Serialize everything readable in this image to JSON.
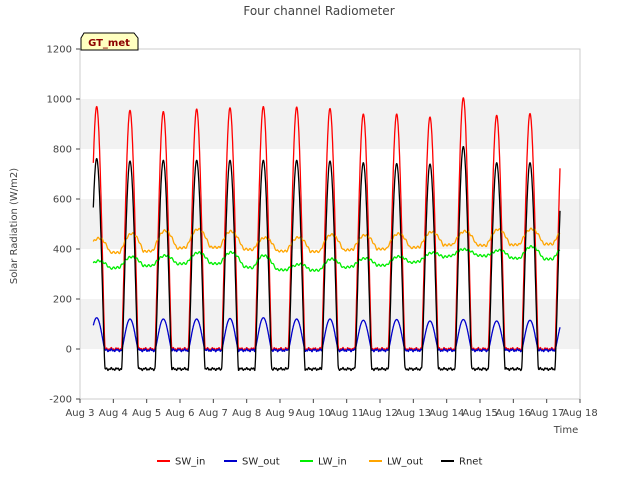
{
  "chart_data": {
    "type": "line",
    "title": "Four channel Radiometer",
    "xlabel": "Time",
    "ylabel": "Solar Radiation (W/m2)",
    "badge": "GT_met",
    "xlim": [
      3,
      18
    ],
    "ylim": [
      -200,
      1200
    ],
    "x_ticks": [
      3,
      4,
      5,
      6,
      7,
      8,
      9,
      10,
      11,
      12,
      13,
      14,
      15,
      16,
      17,
      18
    ],
    "x_tick_labels": [
      "Aug 3",
      "Aug 4",
      "Aug 5",
      "Aug 6",
      "Aug 7",
      "Aug 8",
      "Aug 9",
      "Aug 10",
      "Aug 11",
      "Aug 12",
      "Aug 13",
      "Aug 14",
      "Aug 15",
      "Aug 16",
      "Aug 17",
      "Aug 18"
    ],
    "y_ticks": [
      -200,
      0,
      200,
      400,
      600,
      800,
      1000,
      1200
    ],
    "y_tick_labels": [
      "-200",
      "0",
      "200",
      "400",
      "600",
      "800",
      "1000",
      "1200"
    ],
    "x_start": 3.4,
    "x_end": 17.4,
    "series": [
      {
        "name": "SW_in",
        "color": "#ff0000",
        "kind": "diurnal_peak",
        "night": 0,
        "daily_peak": [
          970,
          955,
          950,
          960,
          965,
          970,
          968,
          962,
          940,
          940,
          928,
          1005,
          935,
          942
        ]
      },
      {
        "name": "SW_out",
        "color": "#0000cc",
        "kind": "diurnal_peak",
        "night": -5,
        "daily_peak": [
          125,
          120,
          120,
          120,
          122,
          125,
          120,
          120,
          115,
          118,
          112,
          118,
          112,
          115
        ]
      },
      {
        "name": "LW_in",
        "color": "#00ee00",
        "kind": "diurnal_wave",
        "daily_low": [
          315,
          330,
          335,
          345,
          340,
          320,
          315,
          315,
          335,
          335,
          355,
          380,
          370,
          360
        ],
        "daily_high": [
          350,
          368,
          372,
          385,
          388,
          380,
          335,
          360,
          362,
          368,
          382,
          400,
          392,
          410
        ]
      },
      {
        "name": "LW_out",
        "color": "#ffa500",
        "kind": "diurnal_wave",
        "daily_low": [
          388,
          385,
          395,
          410,
          405,
          395,
          390,
          390,
          400,
          400,
          410,
          420,
          412,
          420
        ],
        "daily_high": [
          440,
          460,
          472,
          480,
          475,
          445,
          445,
          458,
          455,
          460,
          468,
          470,
          478,
          480
        ]
      },
      {
        "name": "Rnet",
        "color": "#000000",
        "kind": "diurnal_peak",
        "night": -80,
        "daily_peak": [
          762,
          752,
          755,
          755,
          755,
          755,
          755,
          752,
          745,
          742,
          740,
          810,
          745,
          745
        ]
      }
    ],
    "legend": [
      "SW_in",
      "SW_out",
      "LW_in",
      "LW_out",
      "Rnet"
    ],
    "legend_position": "bottom-center",
    "grid": "alternating-bands"
  }
}
